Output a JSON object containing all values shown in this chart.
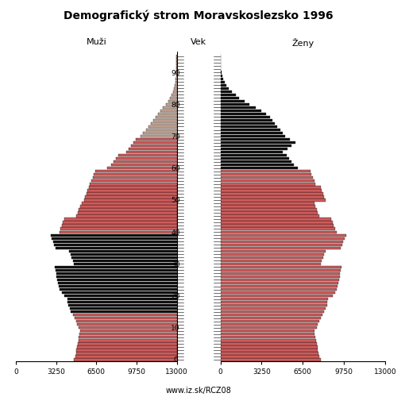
{
  "title": "Demografický strom Moravskoslezsko 1996",
  "label_left": "Muži",
  "label_center": "Vek",
  "label_right": "Ženy",
  "footer": "www.iz.sk/RCZ08",
  "xlim": 13000,
  "xticks": [
    0,
    3250,
    6500,
    9750,
    13000
  ],
  "age_ticks": [
    0,
    10,
    20,
    30,
    40,
    50,
    60,
    70,
    80,
    90
  ],
  "color_red": "#cd5c5c",
  "color_dark": "#111111",
  "color_light": "#c8a898",
  "ages": [
    0,
    1,
    2,
    3,
    4,
    5,
    6,
    7,
    8,
    9,
    10,
    11,
    12,
    13,
    14,
    15,
    16,
    17,
    18,
    19,
    20,
    21,
    22,
    23,
    24,
    25,
    26,
    27,
    28,
    29,
    30,
    31,
    32,
    33,
    34,
    35,
    36,
    37,
    38,
    39,
    40,
    41,
    42,
    43,
    44,
    45,
    46,
    47,
    48,
    49,
    50,
    51,
    52,
    53,
    54,
    55,
    56,
    57,
    58,
    59,
    60,
    61,
    62,
    63,
    64,
    65,
    66,
    67,
    68,
    69,
    70,
    71,
    72,
    73,
    74,
    75,
    76,
    77,
    78,
    79,
    80,
    81,
    82,
    83,
    84,
    85,
    86,
    87,
    88,
    89,
    90,
    91,
    92,
    93,
    94,
    95
  ],
  "males": [
    8300,
    8200,
    8150,
    8100,
    8050,
    8000,
    7950,
    7900,
    7850,
    7800,
    7950,
    8050,
    8150,
    8250,
    8400,
    8550,
    8650,
    8750,
    8800,
    8850,
    9100,
    9300,
    9450,
    9550,
    9600,
    9650,
    9700,
    9750,
    9800,
    9850,
    8300,
    8400,
    8500,
    8600,
    8700,
    9800,
    9900,
    10000,
    10100,
    10200,
    9500,
    9400,
    9300,
    9200,
    9100,
    8100,
    8000,
    7900,
    7800,
    7700,
    7500,
    7400,
    7300,
    7200,
    7100,
    7000,
    6900,
    6800,
    6700,
    6600,
    5600,
    5300,
    5100,
    4900,
    4700,
    4100,
    3900,
    3700,
    3500,
    3300,
    2900,
    2700,
    2500,
    2300,
    2100,
    1900,
    1700,
    1500,
    1300,
    1100,
    850,
    700,
    550,
    420,
    320,
    230,
    170,
    110,
    75,
    52,
    33,
    22,
    12,
    8,
    5,
    3
  ],
  "females": [
    7900,
    7800,
    7750,
    7700,
    7650,
    7600,
    7550,
    7500,
    7450,
    7400,
    7600,
    7700,
    7800,
    7900,
    8050,
    8200,
    8300,
    8400,
    8450,
    8500,
    8850,
    9050,
    9150,
    9250,
    9300,
    9350,
    9400,
    9450,
    9500,
    9550,
    7900,
    8000,
    8100,
    8200,
    8300,
    9500,
    9600,
    9700,
    9800,
    9900,
    9150,
    9050,
    8950,
    8850,
    8750,
    7800,
    7700,
    7600,
    7500,
    7400,
    8300,
    8200,
    8100,
    8000,
    7900,
    7500,
    7400,
    7300,
    7200,
    7100,
    6100,
    5800,
    5600,
    5400,
    5200,
    4900,
    5300,
    5600,
    5900,
    5500,
    5100,
    4900,
    4700,
    4500,
    4300,
    4100,
    3900,
    3600,
    3200,
    2800,
    2300,
    1900,
    1500,
    1200,
    900,
    650,
    480,
    330,
    220,
    145,
    90,
    55,
    34,
    22,
    13,
    8
  ],
  "male_dark_ages": [
    15,
    16,
    17,
    18,
    19,
    20,
    21,
    22,
    23,
    24,
    25,
    26,
    27,
    28,
    29,
    30,
    31,
    32,
    33,
    34,
    35,
    36,
    37,
    38,
    39
  ],
  "female_dark_ages": [
    60,
    61,
    62,
    63,
    64,
    65,
    66,
    67,
    68,
    69,
    70,
    71,
    72,
    73,
    74,
    75,
    76,
    77,
    78,
    79,
    80,
    81,
    82,
    83,
    84,
    85,
    86,
    87,
    88,
    89,
    90,
    91,
    92,
    93,
    94,
    95
  ],
  "male_light_ages": [
    70,
    71,
    72,
    73,
    74,
    75,
    76,
    77,
    78,
    79,
    80,
    81,
    82,
    83,
    84,
    85,
    86,
    87,
    88,
    89,
    90,
    91,
    92,
    93,
    94,
    95
  ]
}
